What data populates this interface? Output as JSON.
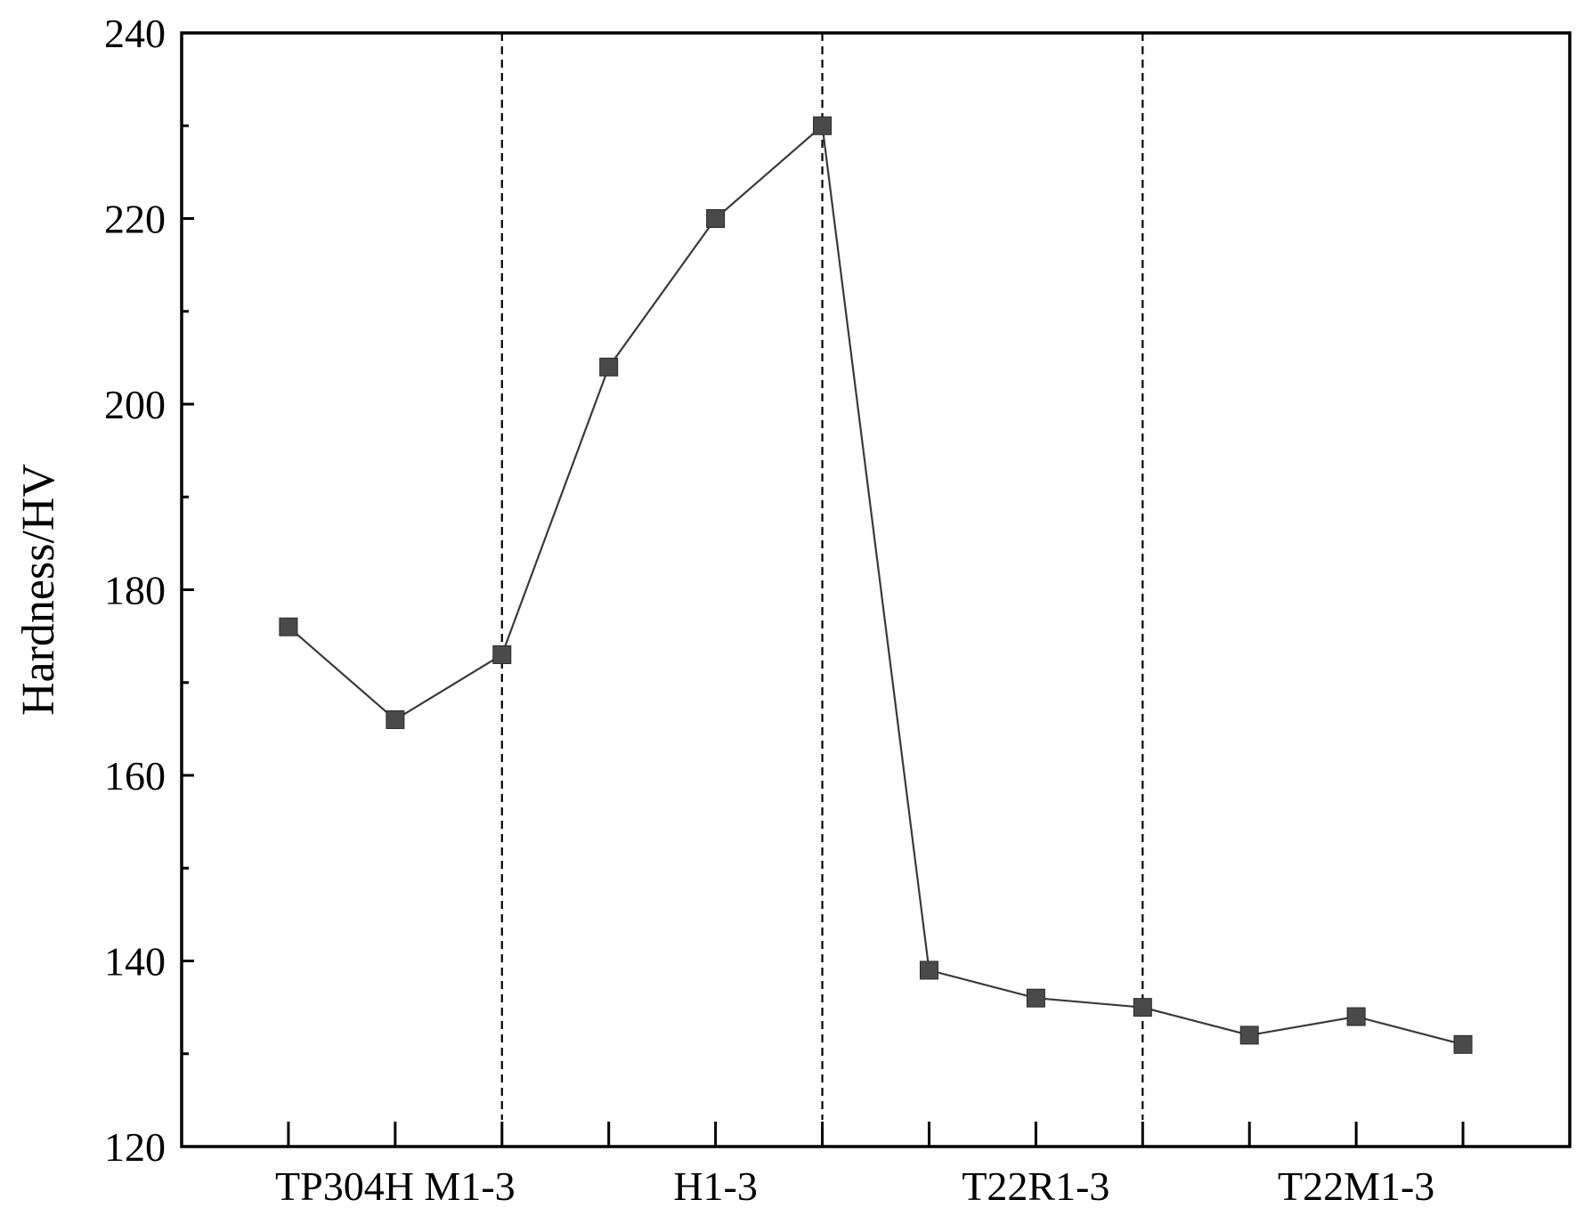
{
  "chart_data": {
    "type": "line",
    "title": "",
    "xlabel": "",
    "ylabel": "Hardness/HV",
    "ylim": [
      120,
      240
    ],
    "yticks": [
      120,
      140,
      160,
      180,
      200,
      220,
      240
    ],
    "x": [
      1,
      2,
      3,
      4,
      5,
      6,
      7,
      8,
      9,
      10,
      11,
      12
    ],
    "xlim": [
      0,
      13
    ],
    "group_labels": [
      {
        "label": "TP304H M1-3",
        "center": 2
      },
      {
        "label": "H1-3",
        "center": 5
      },
      {
        "label": "T22R1-3",
        "center": 8
      },
      {
        "label": "T22M1-3",
        "center": 11
      }
    ],
    "dividers": [
      3,
      6,
      9
    ],
    "series": [
      {
        "values": [
          176,
          166,
          173,
          204,
          220,
          230,
          139,
          136,
          135,
          132,
          134,
          131
        ],
        "color": "#4a4a4a",
        "marker": "square"
      }
    ],
    "grid": false,
    "legend": "none"
  }
}
